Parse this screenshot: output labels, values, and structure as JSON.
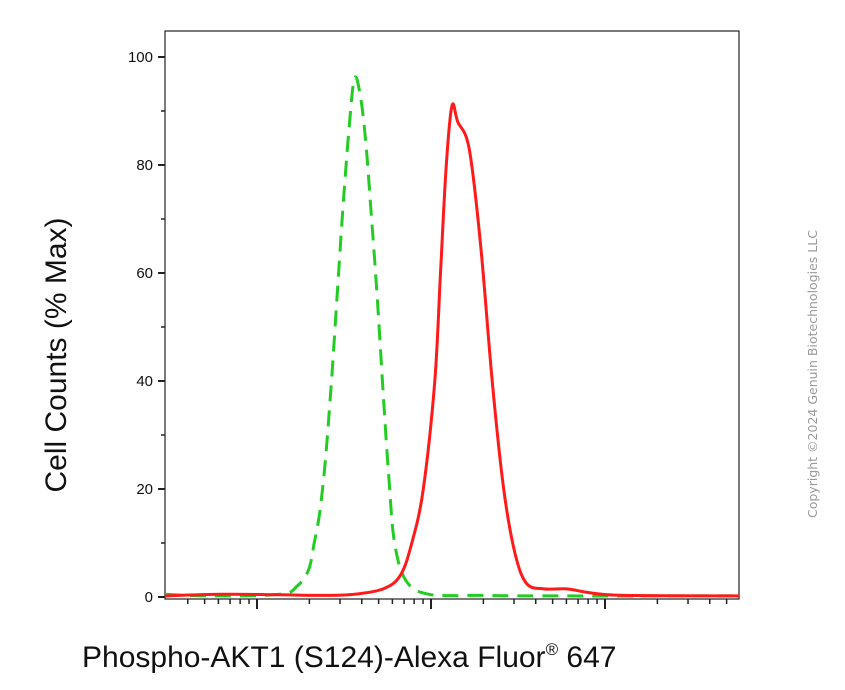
{
  "chart_data": {
    "type": "line",
    "title": "",
    "ylabel": "Cell Counts (% Max)",
    "xlabel_main": "Phospho-AKT1 (S124)-Alexa Fluor",
    "xlabel_reg": "®",
    "xlabel_tail": " 647",
    "ylim": [
      0,
      100
    ],
    "xlim": [
      0,
      1
    ],
    "yticks": [
      "0",
      "20",
      "40",
      "60",
      "80",
      "100"
    ],
    "x_scale": "log",
    "grid": false,
    "series": [
      {
        "style": "dashed",
        "color": "#22cc22",
        "x": [
          0.0,
          0.08,
          0.2,
          0.23,
          0.25,
          0.26,
          0.27,
          0.28,
          0.29,
          0.3,
          0.31,
          0.32,
          0.33,
          0.34,
          0.35,
          0.36,
          0.37,
          0.38,
          0.39,
          0.4,
          0.42,
          0.46,
          0.55,
          0.65,
          1.0
        ],
        "y": [
          0.5,
          0.2,
          0.5,
          2,
          5,
          10,
          16,
          26,
          40,
          56,
          72,
          86,
          96,
          93,
          84,
          70,
          55,
          38,
          22,
          10,
          3,
          0.5,
          0.3,
          0.2,
          0.2
        ]
      },
      {
        "style": "solid",
        "color": "#ff1a1a",
        "x": [
          0.0,
          0.1,
          0.2,
          0.28,
          0.33,
          0.38,
          0.41,
          0.43,
          0.45,
          0.47,
          0.48,
          0.49,
          0.5,
          0.51,
          0.53,
          0.55,
          0.57,
          0.59,
          0.61,
          0.63,
          0.66,
          0.7,
          0.74,
          0.8,
          1.0
        ],
        "y": [
          0.2,
          0.5,
          0.4,
          0.3,
          0.5,
          1.5,
          4,
          10,
          20,
          40,
          60,
          80,
          91,
          88,
          83,
          65,
          40,
          20,
          8,
          2.5,
          1.5,
          1.5,
          0.8,
          0.3,
          0.2
        ]
      }
    ]
  },
  "copyright": "Copyright ©2024 Genuin Biotechnologies LLC"
}
